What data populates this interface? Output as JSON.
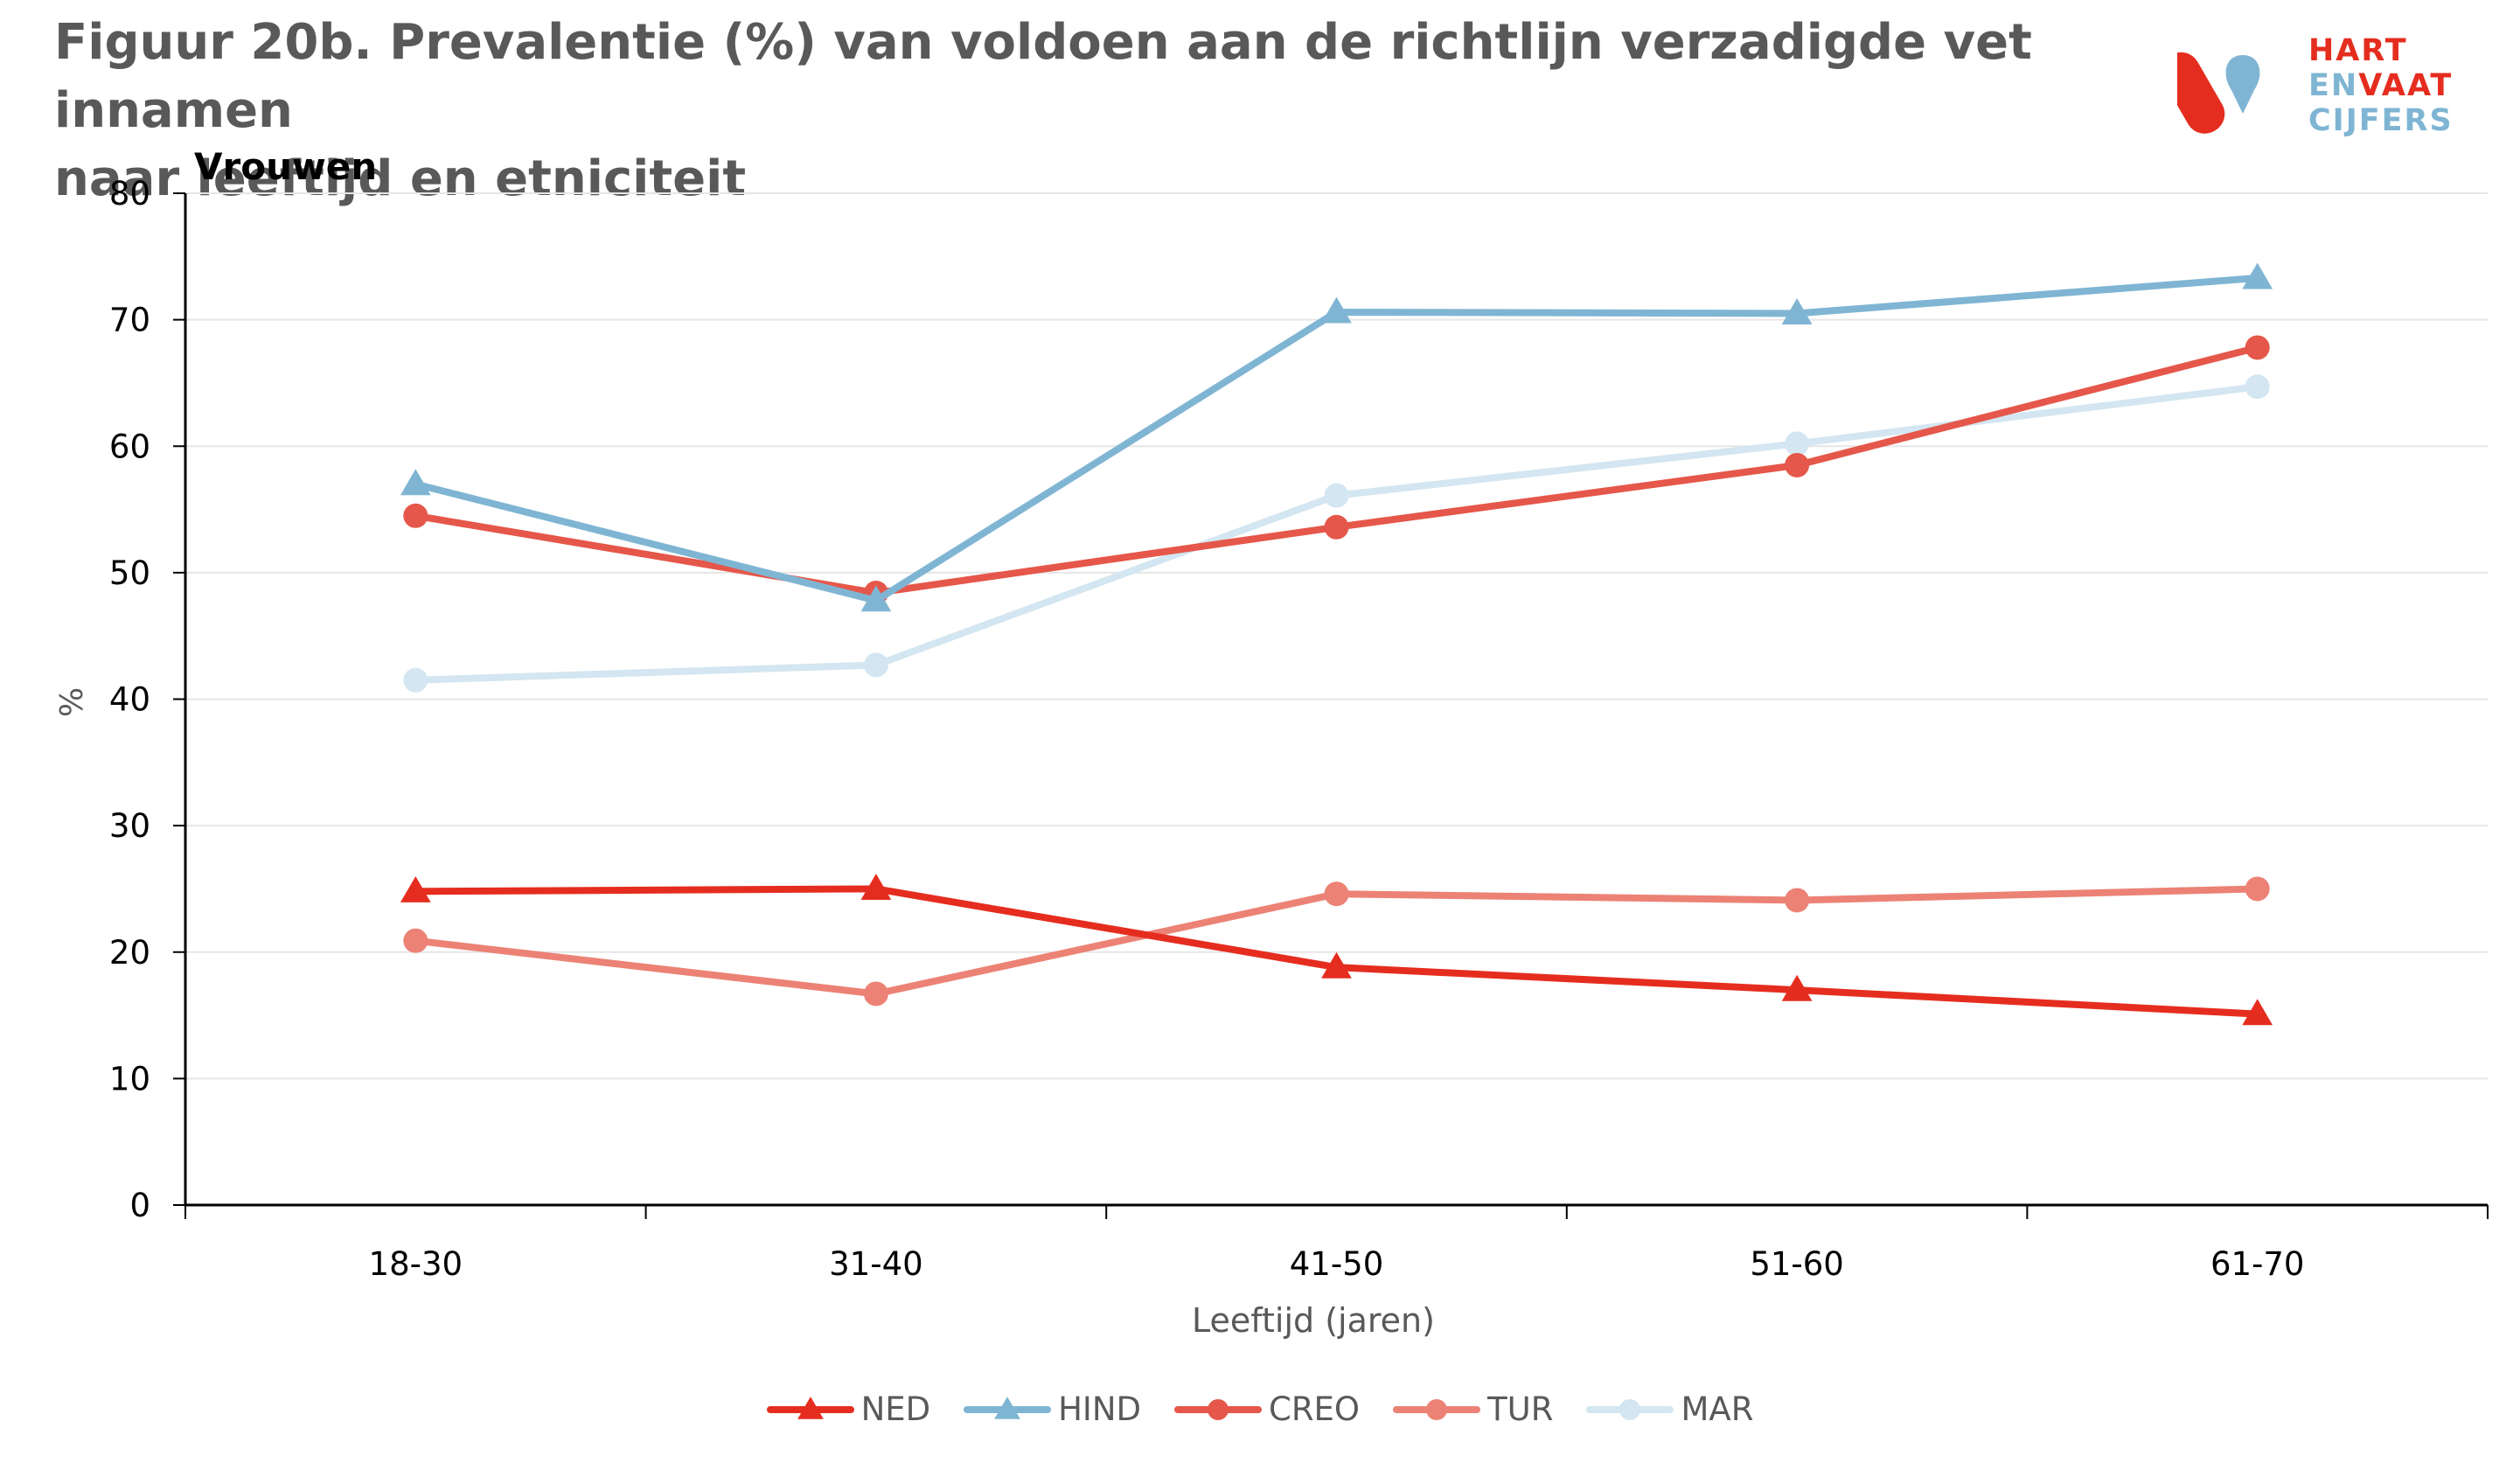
{
  "title_line1": "Figuur 20b. Prevalentie (%) van  voldoen aan de richtlijn verzadigde vet innamen",
  "title_line2": "naar leeftijd en etniciteit",
  "logo": {
    "line1": "HART",
    "line2a": "EN",
    "line2b": "VAAT",
    "line3": "CIJFERS"
  },
  "chart_data": {
    "type": "line",
    "subtitle": "Vrouwen",
    "xlabel": "Leeftijd (jaren)",
    "ylabel": "%",
    "categories": [
      "18-30",
      "31-40",
      "41-50",
      "51-60",
      "61-70"
    ],
    "ylim": [
      0,
      80
    ],
    "yticks": [
      0,
      10,
      20,
      30,
      40,
      50,
      60,
      70,
      80
    ],
    "grid": true,
    "legend_position": "bottom",
    "series": [
      {
        "name": "NED",
        "color": "#e52d1f",
        "marker": "triangle",
        "values": [
          24.8,
          25.0,
          18.8,
          17.0,
          15.1
        ]
      },
      {
        "name": "HIND",
        "color": "#7fb5d3",
        "marker": "triangle",
        "values": [
          57.0,
          47.8,
          70.6,
          70.5,
          73.3
        ]
      },
      {
        "name": "CREO",
        "color": "#e5574a",
        "marker": "circle",
        "values": [
          54.5,
          48.4,
          53.6,
          58.5,
          67.8
        ]
      },
      {
        "name": "TUR",
        "color": "#ec8275",
        "marker": "circle",
        "values": [
          20.9,
          16.7,
          24.6,
          24.1,
          25.0
        ]
      },
      {
        "name": "MAR",
        "color": "#d3e6f1",
        "marker": "circle",
        "values": [
          41.5,
          42.7,
          56.1,
          60.2,
          64.7
        ]
      }
    ]
  }
}
